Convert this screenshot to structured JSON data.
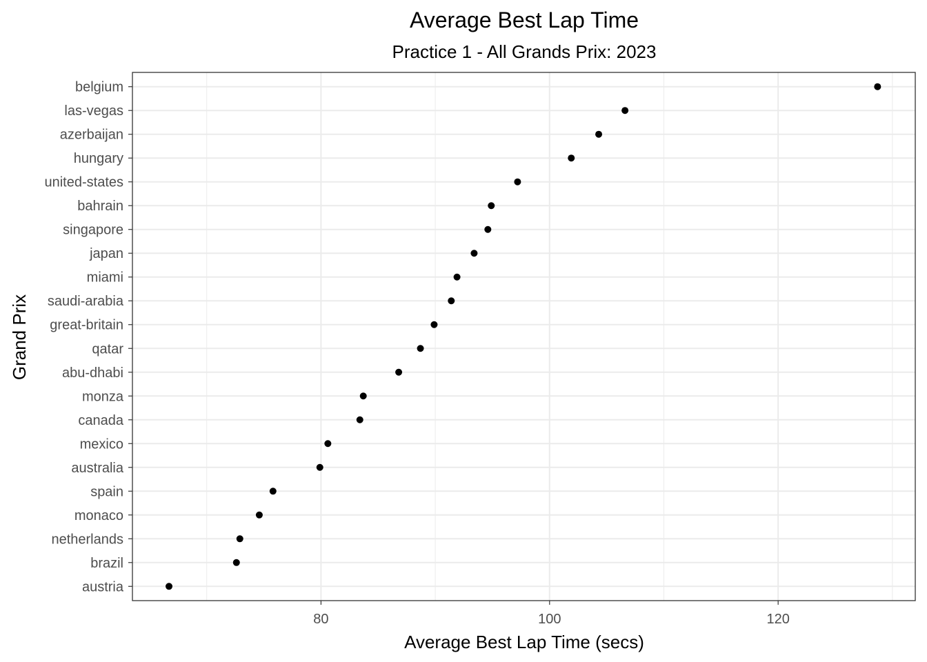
{
  "chart_data": {
    "type": "scatter",
    "title": "Average Best Lap Time",
    "subtitle": "Practice 1 - All Grands Prix: 2023",
    "xlabel": "Average Best Lap Time (secs)",
    "ylabel": "Grand Prix",
    "xlim": [
      63.5,
      132.0
    ],
    "x_ticks": [
      80,
      100,
      120
    ],
    "grid": true,
    "point_color": "#000000",
    "categories": [
      "austria",
      "brazil",
      "netherlands",
      "monaco",
      "spain",
      "australia",
      "mexico",
      "canada",
      "monza",
      "abu-dhabi",
      "qatar",
      "great-britain",
      "saudi-arabia",
      "miami",
      "japan",
      "singapore",
      "bahrain",
      "united-states",
      "hungary",
      "azerbaijan",
      "las-vegas",
      "belgium"
    ],
    "values": [
      66.7,
      72.6,
      72.9,
      74.6,
      75.8,
      79.9,
      80.6,
      83.4,
      83.7,
      86.8,
      88.7,
      89.9,
      91.4,
      91.9,
      93.4,
      94.6,
      94.9,
      97.2,
      101.9,
      104.3,
      106.6,
      128.7
    ]
  }
}
